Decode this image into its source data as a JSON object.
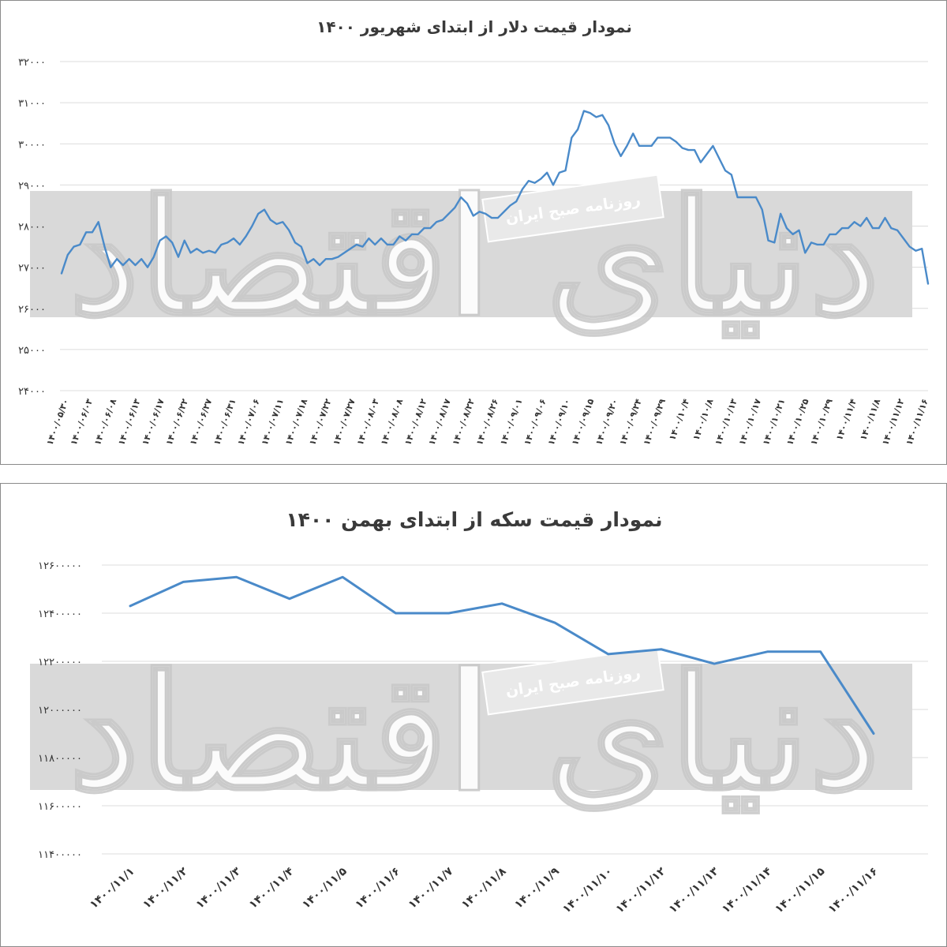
{
  "colors": {
    "line": "#4a8ac9",
    "grid": "#dcdcdc",
    "band": "#d9d9d9",
    "text": "#333333"
  },
  "watermark": {
    "publisher": "روزنامه صبح ایران",
    "logo": "دنیای اقتصاد"
  },
  "chart_data": [
    {
      "type": "line",
      "title": "نمودار قیمت دلار از ابتدای شهریور ۱۴۰۰",
      "xlabel": "",
      "ylabel": "",
      "ylim": [
        24000,
        32000
      ],
      "y_ticks": [
        24000,
        25000,
        26000,
        27000,
        28000,
        29000,
        30000,
        31000,
        32000
      ],
      "y_tick_labels": [
        "۲۴۰۰۰",
        "۲۵۰۰۰",
        "۲۶۰۰۰",
        "۲۷۰۰۰",
        "۲۸۰۰۰",
        "۲۹۰۰۰",
        "۳۰۰۰۰",
        "۳۱۰۰۰",
        "۳۲۰۰۰"
      ],
      "x_tick_labels": [
        "۱۴۰۰/۰۵/۳۰",
        "۱۴۰۰/۰۶/۰۳",
        "۱۴۰۰/۰۶/۰۸",
        "۱۴۰۰/۰۶/۱۳",
        "۱۴۰۰/۰۶/۱۷",
        "۱۴۰۰/۰۶/۲۲",
        "۱۴۰۰/۰۶/۲۷",
        "۱۴۰۰/۰۶/۳۱",
        "۱۴۰۰/۰۷/۰۶",
        "۱۴۰۰/۰۷/۱۱",
        "۱۴۰۰/۰۷/۱۸",
        "۱۴۰۰/۰۷/۲۲",
        "۱۴۰۰/۰۷/۲۷",
        "۱۴۰۰/۰۸/۰۳",
        "۱۴۰۰/۰۸/۰۸",
        "۱۴۰۰/۰۸/۱۲",
        "۱۴۰۰/۰۸/۱۷",
        "۱۴۰۰/۰۸/۲۲",
        "۱۴۰۰/۰۸/۲۶",
        "۱۴۰۰/۰۹/۰۱",
        "۱۴۰۰/۰۹/۰۶",
        "۱۴۰۰/۰۹/۱۰",
        "۱۴۰۰/۰۹/۱۵",
        "۱۴۰۰/۰۹/۲۰",
        "۱۴۰۰/۰۹/۲۴",
        "۱۴۰۰/۰۹/۲۹",
        "۱۴۰۰/۱۰/۴",
        "۱۴۰۰/۱۰/۸",
        "۱۴۰۰/۱۰/۱۳",
        "۱۴۰۰/۱۰/۱۷",
        "۱۴۰۰/۱۰/۲۱",
        "۱۴۰۰/۱۰/۲۵",
        "۱۴۰۰/۱۰/۲۹",
        "۱۴۰۰/۱۱/۴",
        "۱۴۰۰/۱۱/۸",
        "۱۴۰۰/۱۱/۱۲",
        "۱۴۰۰/۱۱/۱۶"
      ],
      "series": [
        {
          "name": "دلار",
          "values": [
            26850,
            27300,
            27500,
            27550,
            27850,
            27850,
            28100,
            27500,
            27000,
            27200,
            27050,
            27200,
            27050,
            27200,
            27000,
            27250,
            27650,
            27750,
            27600,
            27250,
            27650,
            27350,
            27450,
            27350,
            27400,
            27350,
            27550,
            27600,
            27700,
            27550,
            27750,
            28000,
            28300,
            28400,
            28150,
            28050,
            28100,
            27900,
            27600,
            27500,
            27100,
            27200,
            27050,
            27200,
            27200,
            27250,
            27350,
            27450,
            27550,
            27500,
            27700,
            27550,
            27700,
            27550,
            27550,
            27750,
            27650,
            27800,
            27800,
            27950,
            27950,
            28100,
            28150,
            28300,
            28450,
            28700,
            28550,
            28250,
            28350,
            28300,
            28200,
            28200,
            28350,
            28500,
            28600,
            28900,
            29100,
            29050,
            29150,
            29300,
            29000,
            29300,
            29350,
            30150,
            30350,
            30800,
            30750,
            30650,
            30700,
            30450,
            30000,
            29700,
            29950,
            30250,
            29950,
            29950,
            29950,
            30150,
            30150,
            30150,
            30050,
            29900,
            29850,
            29850,
            29550,
            29750,
            29950,
            29650,
            29350,
            29250,
            28700,
            28700,
            28700,
            28700,
            28400,
            27650,
            27600,
            28300,
            27950,
            27800,
            27900,
            27350,
            27600,
            27550,
            27550,
            27800,
            27800,
            27950,
            27950,
            28100,
            28000,
            28200,
            27950,
            27950,
            28200,
            27950,
            27900,
            27700,
            27500,
            27400,
            27450,
            26600
          ]
        }
      ]
    },
    {
      "type": "line",
      "title": "نمودار قیمت سکه از ابتدای بهمن ۱۴۰۰",
      "xlabel": "",
      "ylabel": "",
      "ylim": [
        11400000,
        12600000
      ],
      "y_ticks": [
        11400000,
        11600000,
        11800000,
        12000000,
        12200000,
        12400000,
        12600000
      ],
      "y_tick_labels": [
        "۱۱۴۰۰۰۰۰",
        "۱۱۶۰۰۰۰۰",
        "۱۱۸۰۰۰۰۰",
        "۱۲۰۰۰۰۰۰",
        "۱۲۲۰۰۰۰۰",
        "۱۲۴۰۰۰۰۰",
        "۱۲۶۰۰۰۰۰"
      ],
      "categories": [
        "۱۴۰۰/۱۱/۱",
        "۱۴۰۰/۱۱/۲",
        "۱۴۰۰/۱۱/۳",
        "۱۴۰۰/۱۱/۴",
        "۱۴۰۰/۱۱/۵",
        "۱۴۰۰/۱۱/۶",
        "۱۴۰۰/۱۱/۷",
        "۱۴۰۰/۱۱/۸",
        "۱۴۰۰/۱۱/۹",
        "۱۴۰۰/۱۱/۱۰",
        "۱۴۰۰/۱۱/۱۲",
        "۱۴۰۰/۱۱/۱۳",
        "۱۴۰۰/۱۱/۱۴",
        "۱۴۰۰/۱۱/۱۵",
        "۱۴۰۰/۱۱/۱۶"
      ],
      "series": [
        {
          "name": "سکه",
          "values": [
            12430000,
            12530000,
            12550000,
            12460000,
            12550000,
            12400000,
            12400000,
            12440000,
            12360000,
            12230000,
            12250000,
            12190000,
            12240000,
            12240000,
            11900000
          ]
        }
      ]
    }
  ]
}
